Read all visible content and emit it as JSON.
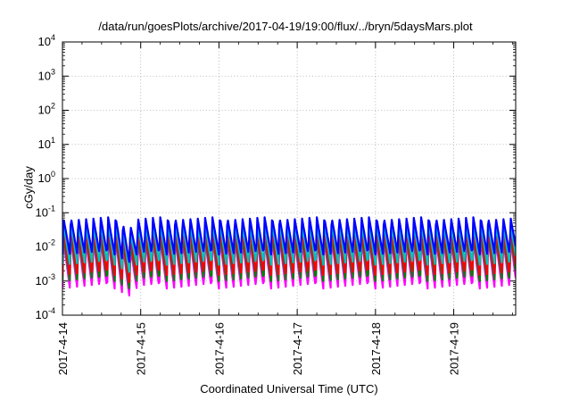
{
  "chart_data": {
    "type": "line",
    "title": "/data/run/goesPlots/archive/2017-04-19/19:00/flux/../bryn/5daysMars.plot",
    "xlabel": "Coordinated Universal Time (UTC)",
    "ylabel": "cGy/day",
    "yscale": "log",
    "ylim": [
      0.0001,
      10000
    ],
    "ytick_labels": [
      {
        "base": "10",
        "exp": "-4"
      },
      {
        "base": "10",
        "exp": "-3"
      },
      {
        "base": "10",
        "exp": "-2"
      },
      {
        "base": "10",
        "exp": "-1"
      },
      {
        "base": "10",
        "exp": "0"
      },
      {
        "base": "10",
        "exp": "1"
      },
      {
        "base": "10",
        "exp": "2"
      },
      {
        "base": "10",
        "exp": "3"
      },
      {
        "base": "10",
        "exp": "4"
      }
    ],
    "xlim": [
      "2017-04-14 00:00",
      "2017-04-19 19:00"
    ],
    "xtick_labels": [
      "2017-4-14",
      "2017-4-15",
      "2017-4-16",
      "2017-4-17",
      "2017-4-18",
      "2017-4-19"
    ],
    "grid": true,
    "cycles_per_day": 10.5,
    "series": [
      {
        "color": "#0000ff",
        "peak": 0.075,
        "trough": 0.006
      },
      {
        "color": "#00c0c0",
        "peak": 0.05,
        "trough": 0.003
      },
      {
        "color": "#ff0000",
        "peak": 0.035,
        "trough": 0.0015
      },
      {
        "color": "#008000",
        "peak": 0.025,
        "trough": 0.001
      },
      {
        "color": "#ff00ff",
        "peak": 0.018,
        "trough": 0.0006
      }
    ],
    "dip": {
      "start": "2017-04-14 17:00",
      "end": "2017-04-15 00:00",
      "min_factor": 0.55
    }
  }
}
